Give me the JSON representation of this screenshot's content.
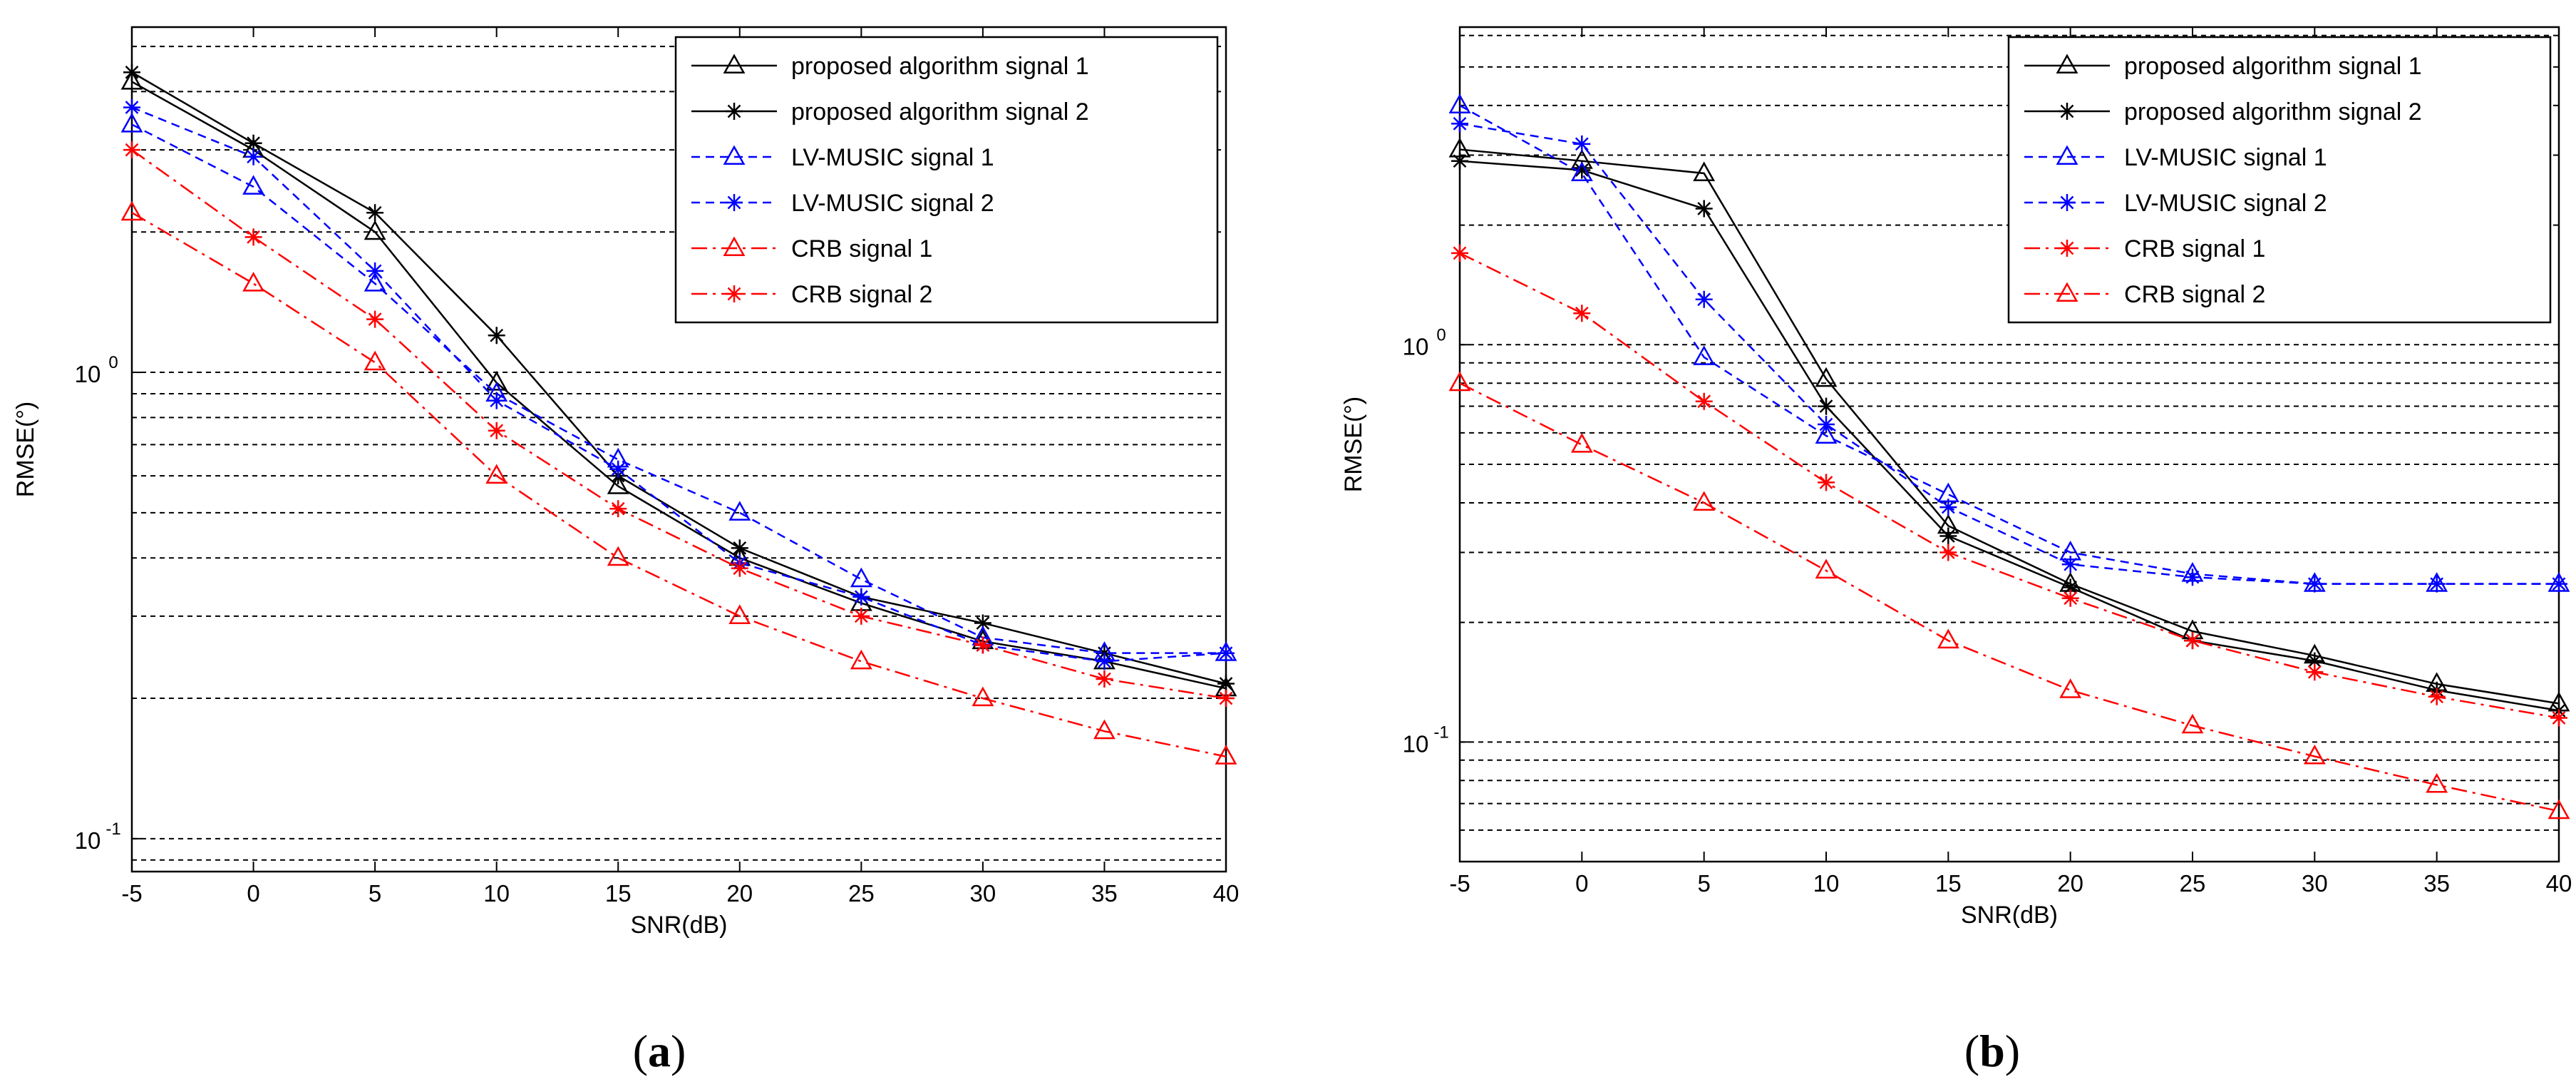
{
  "chart_data": [
    {
      "id": "a",
      "type": "line",
      "caption": "a",
      "title": "",
      "xlabel": "SNR(dB)",
      "ylabel": "RMSE(°)",
      "yscale": "log",
      "xlim": [
        -5,
        40
      ],
      "ylim": [
        0.085,
        5.5
      ],
      "xticks": [
        -5,
        0,
        5,
        10,
        15,
        20,
        25,
        30,
        35,
        40
      ],
      "xtick_labels": [
        "-5",
        "0",
        "5",
        "10",
        "15",
        "20",
        "25",
        "30",
        "35",
        "40"
      ],
      "yticks_labeled": [
        0.1,
        1
      ],
      "ytick_labels": [
        "10",
        "10"
      ],
      "ytick_exponents": [
        "-1",
        "0"
      ],
      "grid": true,
      "legend_position": "top-right",
      "x": [
        -5,
        0,
        5,
        10,
        15,
        20,
        25,
        30,
        35,
        40
      ],
      "series": [
        {
          "name": "proposed algorithm signal 1",
          "color": "#000000",
          "marker": "triangle",
          "dash": "solid",
          "values": [
            4.2,
            3.0,
            2.0,
            0.95,
            0.57,
            0.4,
            0.32,
            0.265,
            0.24,
            0.21
          ]
        },
        {
          "name": "proposed algorithm signal 2",
          "color": "#000000",
          "marker": "star",
          "dash": "solid",
          "values": [
            4.4,
            3.1,
            2.2,
            1.2,
            0.6,
            0.42,
            0.33,
            0.29,
            0.25,
            0.215
          ]
        },
        {
          "name": "LV-MUSIC signal 1",
          "color": "#0000ff",
          "marker": "triangle",
          "dash": "dashed",
          "values": [
            3.4,
            2.5,
            1.55,
            0.9,
            0.65,
            0.5,
            0.36,
            0.27,
            0.25,
            0.25
          ]
        },
        {
          "name": "LV-MUSIC signal 2",
          "color": "#0000ff",
          "marker": "star",
          "dash": "dashed",
          "values": [
            3.7,
            2.9,
            1.65,
            0.87,
            0.62,
            0.39,
            0.33,
            0.26,
            0.24,
            0.25
          ]
        },
        {
          "name": "CRB signal 1",
          "color": "#ff0000",
          "marker": "triangle",
          "dash": "dashdot",
          "values": [
            2.2,
            1.55,
            1.05,
            0.6,
            0.4,
            0.3,
            0.24,
            0.2,
            0.17,
            0.15
          ]
        },
        {
          "name": "CRB signal 2",
          "color": "#ff0000",
          "marker": "star",
          "dash": "dashdot",
          "values": [
            3.0,
            1.95,
            1.3,
            0.75,
            0.51,
            0.38,
            0.3,
            0.26,
            0.22,
            0.2
          ]
        }
      ]
    },
    {
      "id": "b",
      "type": "line",
      "caption": "b",
      "title": "",
      "xlabel": "SNR(dB)",
      "ylabel": "RMSE(°)",
      "yscale": "log",
      "xlim": [
        -5,
        40
      ],
      "ylim": [
        0.05,
        6.3
      ],
      "xticks": [
        -5,
        0,
        5,
        10,
        15,
        20,
        25,
        30,
        35,
        40
      ],
      "xtick_labels": [
        "-5",
        "0",
        "5",
        "10",
        "15",
        "20",
        "25",
        "30",
        "35",
        "40"
      ],
      "yticks_labeled": [
        0.1,
        1
      ],
      "ytick_labels": [
        "10",
        "10"
      ],
      "ytick_exponents": [
        "-1",
        "0"
      ],
      "grid": true,
      "legend_position": "top-right",
      "x": [
        -5,
        0,
        5,
        10,
        15,
        20,
        25,
        30,
        35,
        40
      ],
      "series": [
        {
          "name": "proposed algorithm signal 1",
          "color": "#000000",
          "marker": "triangle",
          "dash": "solid",
          "values": [
            3.1,
            2.9,
            2.7,
            0.82,
            0.35,
            0.25,
            0.19,
            0.165,
            0.14,
            0.125
          ]
        },
        {
          "name": "proposed algorithm signal 2",
          "color": "#000000",
          "marker": "star",
          "dash": "solid",
          "values": [
            2.9,
            2.75,
            2.2,
            0.7,
            0.33,
            0.245,
            0.18,
            0.16,
            0.135,
            0.12
          ]
        },
        {
          "name": "LV-MUSIC signal 1",
          "color": "#0000ff",
          "marker": "triangle",
          "dash": "dashed",
          "values": [
            4.0,
            2.7,
            0.93,
            0.59,
            0.42,
            0.3,
            0.265,
            0.25,
            0.25,
            0.25
          ]
        },
        {
          "name": "LV-MUSIC signal 2",
          "color": "#0000ff",
          "marker": "star",
          "dash": "dashed",
          "values": [
            3.6,
            3.2,
            1.3,
            0.63,
            0.39,
            0.28,
            0.26,
            0.25,
            0.25,
            0.25
          ]
        },
        {
          "name": "CRB signal 1",
          "color": "#ff0000",
          "marker": "star",
          "dash": "dashdot",
          "values": [
            1.7,
            1.2,
            0.72,
            0.45,
            0.3,
            0.23,
            0.18,
            0.15,
            0.13,
            0.115
          ]
        },
        {
          "name": "CRB signal 2",
          "color": "#ff0000",
          "marker": "triangle",
          "dash": "dashdot",
          "values": [
            0.8,
            0.56,
            0.4,
            0.27,
            0.18,
            0.135,
            0.11,
            0.092,
            0.078,
            0.067
          ]
        }
      ]
    }
  ]
}
